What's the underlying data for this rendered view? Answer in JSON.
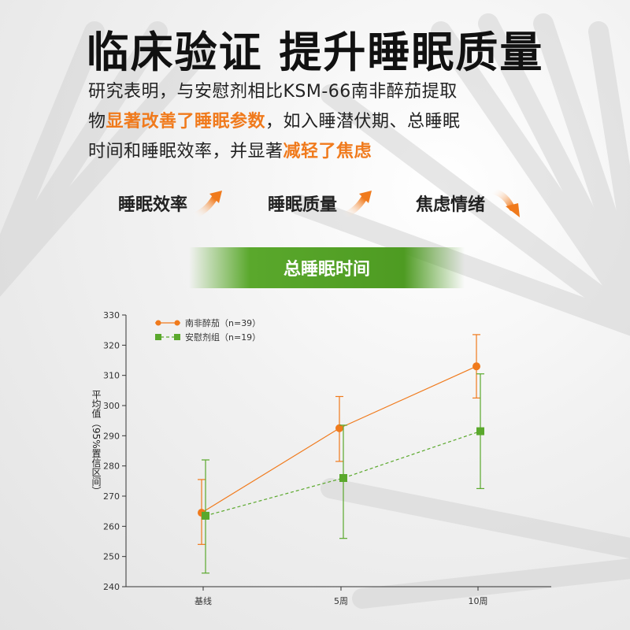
{
  "headline": "临床验证 提升睡眠质量",
  "intro": {
    "p1": "研究表明，与安慰剂相比KSM-66南非醉茄提取",
    "p2a": "物",
    "p2b": "显著改善了睡眠参数",
    "p2c": "，如入睡潜伏期、总睡眠",
    "p3a": "时间和睡眠效率，并显著",
    "p3b": "减轻了焦虑"
  },
  "effects": [
    {
      "label": "睡眠效率",
      "direction": "up"
    },
    {
      "label": "睡眠质量",
      "direction": "up"
    },
    {
      "label": "焦虑情绪",
      "direction": "down"
    }
  ],
  "banner": "总睡眠时间",
  "colors": {
    "orange": "#f07a1c",
    "green": "#5aa82c",
    "banner_green": "#4e9b22"
  },
  "chart_data": {
    "type": "line",
    "categories": [
      "基线",
      "5周",
      "10周"
    ],
    "ylabel": "平均值（95%置信区间）",
    "ylim": [
      240,
      330
    ],
    "yticks": [
      240,
      250,
      260,
      270,
      280,
      290,
      300,
      310,
      320,
      330
    ],
    "grid": false,
    "legend_position": "top-left",
    "series": [
      {
        "name": "南非醉茄（n=39）",
        "color": "#f07a1c",
        "marker": "circle",
        "line": "solid",
        "values": [
          264.5,
          292.5,
          313
        ],
        "ci_low": [
          254,
          281.5,
          302.5
        ],
        "ci_high": [
          275.5,
          303,
          323.5
        ]
      },
      {
        "name": "安慰剂组（n=19）",
        "color": "#5aa82c",
        "marker": "square",
        "line": "dashed",
        "values": [
          263.5,
          276,
          291.5
        ],
        "ci_low": [
          244.5,
          256,
          272.5
        ],
        "ci_high": [
          282,
          293.5,
          310.5
        ]
      }
    ]
  }
}
